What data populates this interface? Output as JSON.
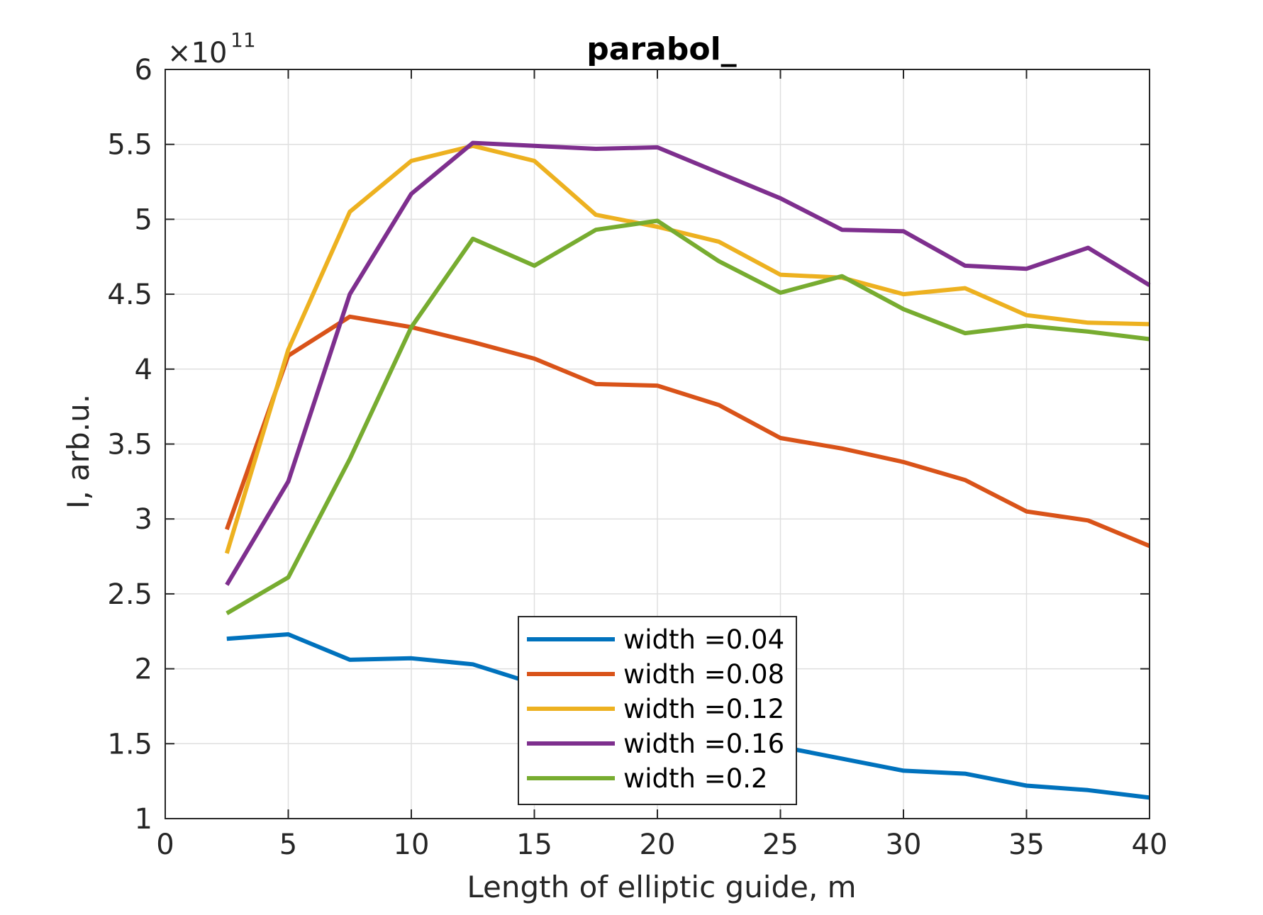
{
  "chart_data": {
    "type": "line",
    "title": "parabol_",
    "xlabel": "Length of elliptic guide, m",
    "ylabel": "I, arb.u.",
    "y_exponent_base": "×10",
    "y_exponent_power": "11",
    "xlim": [
      0,
      40
    ],
    "ylim": [
      1,
      6
    ],
    "xticks": [
      0,
      5,
      10,
      15,
      20,
      25,
      30,
      35,
      40
    ],
    "xtick_labels": [
      "0",
      "5",
      "10",
      "15",
      "20",
      "25",
      "30",
      "35",
      "40"
    ],
    "yticks": [
      1,
      1.5,
      2,
      2.5,
      3,
      3.5,
      4,
      4.5,
      5,
      5.5,
      6
    ],
    "ytick_labels": [
      "1",
      "1.5",
      "2",
      "2.5",
      "3",
      "3.5",
      "4",
      "4.5",
      "5",
      "5.5",
      "6"
    ],
    "grid": true,
    "legend_position": "bottom-center",
    "x": [
      2.5,
      5,
      7.5,
      10,
      12.5,
      15,
      17.5,
      20,
      22.5,
      25,
      27.5,
      30,
      32.5,
      35,
      37.5,
      40
    ],
    "series": [
      {
        "name": "width =0.04",
        "color": "#0072bd",
        "values": [
          2.2,
          2.23,
          2.06,
          2.07,
          2.03,
          1.9,
          1.78,
          1.7,
          1.6,
          1.48,
          1.4,
          1.32,
          1.3,
          1.22,
          1.19,
          1.14
        ]
      },
      {
        "name": "width =0.08",
        "color": "#d95319",
        "values": [
          2.93,
          4.09,
          4.35,
          4.28,
          4.18,
          4.07,
          3.9,
          3.89,
          3.76,
          3.54,
          3.47,
          3.38,
          3.26,
          3.05,
          2.99,
          2.82
        ]
      },
      {
        "name": "width =0.12",
        "color": "#edb120",
        "values": [
          2.77,
          4.13,
          5.05,
          5.39,
          5.49,
          5.39,
          5.03,
          4.95,
          4.85,
          4.63,
          4.61,
          4.5,
          4.54,
          4.36,
          4.31,
          4.3
        ]
      },
      {
        "name": "width =0.16",
        "color": "#7e2f8e",
        "values": [
          2.56,
          3.25,
          4.5,
          5.17,
          5.51,
          5.49,
          5.47,
          5.48,
          5.31,
          5.14,
          4.93,
          4.92,
          4.69,
          4.67,
          4.81,
          4.56
        ]
      },
      {
        "name": "width =0.2",
        "color": "#77ac30",
        "values": [
          2.37,
          2.61,
          3.4,
          4.28,
          4.87,
          4.69,
          4.93,
          4.99,
          4.72,
          4.51,
          4.62,
          4.4,
          4.24,
          4.29,
          4.25,
          4.2
        ]
      }
    ]
  }
}
